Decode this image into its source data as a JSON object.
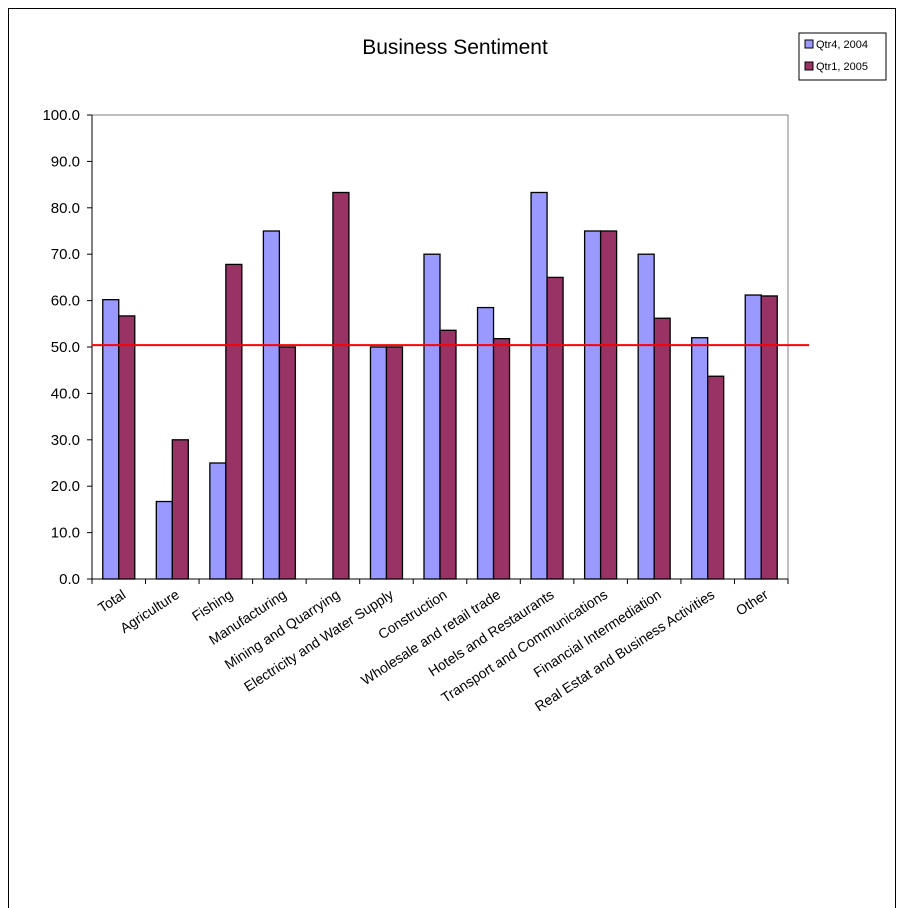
{
  "chart_data": {
    "type": "bar",
    "title": "Business Sentiment",
    "xlabel": "",
    "ylabel": "",
    "ylim": [
      0,
      100
    ],
    "yticks": [
      "0.0",
      "10.0",
      "20.0",
      "30.0",
      "40.0",
      "50.0",
      "60.0",
      "70.0",
      "80.0",
      "90.0",
      "100.0"
    ],
    "categories": [
      "Total",
      "Agriculture",
      "Fishing",
      "Manufacturing",
      "Mining and Quarrying",
      "Electricity and Water Supply",
      "Construction",
      "Wholesale and retail trade",
      "Hotels and Restaurants",
      "Transport and Communications",
      "Financial Intermediation",
      "Real Estat and Business Activities",
      "Other"
    ],
    "series": [
      {
        "name": "Qtr4, 2004",
        "color": "#9999ff",
        "values": [
          60.2,
          16.7,
          25.0,
          75.0,
          0,
          50.0,
          70.0,
          58.5,
          83.3,
          75.0,
          70.0,
          52.0,
          61.2
        ]
      },
      {
        "name": "Qtr1, 2005",
        "color": "#993366",
        "values": [
          56.7,
          30.0,
          67.8,
          50.0,
          83.3,
          50.0,
          53.6,
          51.8,
          65.0,
          75.0,
          56.2,
          43.7,
          61.0
        ]
      }
    ],
    "reference_line": {
      "value": 50.4,
      "color": "#ff0000"
    },
    "grid": false,
    "legend_position": "top-right"
  }
}
